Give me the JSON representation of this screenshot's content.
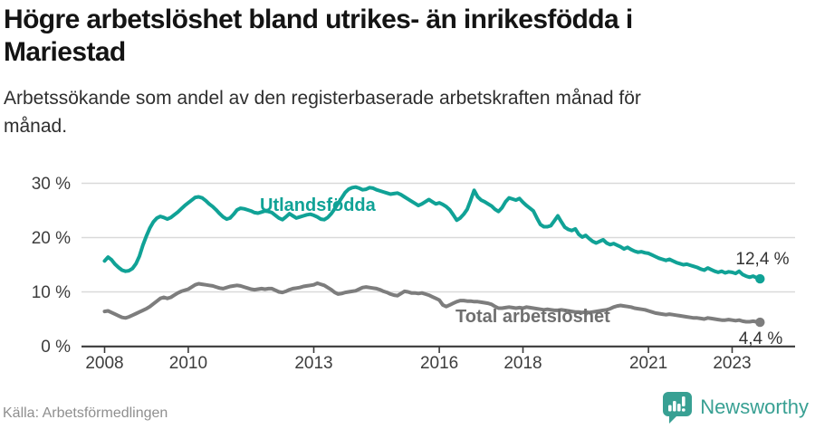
{
  "header": {
    "title": "Högre arbetslöshet bland utrikes- än inrikesfödda i\nMariestad",
    "subtitle": "Arbetssökande som andel av den registerbaserade arbetskraften månad för\nmånad."
  },
  "footer": {
    "source": "Källa: Arbetsförmedlingen",
    "brand": "Newsworthy"
  },
  "icons": {
    "brand_logo": "newsworthy-chart-bubble-icon"
  },
  "colors": {
    "accent_teal": "#10a296",
    "line_gray": "#7d7d7d",
    "label_gray": "#6f6f6f",
    "grid": "#d9d9d9",
    "axis": "#3a3a3a",
    "brand_teal": "#38a093"
  },
  "chart_data": {
    "type": "line",
    "title": "Högre arbetslöshet bland utrikes- än inrikesfödda i Mariestad",
    "subtitle": "Arbetssökande som andel av den registerbaserade arbetskraften månad för månad.",
    "frequency": "monthly",
    "period_start": "2008-01",
    "period_end": "2023-09",
    "grid": true,
    "legend_position": "inline-labels",
    "ylim": [
      0,
      32
    ],
    "y_axis": {
      "tick_values": [
        0,
        10,
        20,
        30
      ],
      "tick_labels": [
        "0 %",
        "10 %",
        "20 %",
        "30 %"
      ]
    },
    "x_axis": {
      "tick_years": [
        2008,
        2010,
        2013,
        2016,
        2018,
        2021,
        2023
      ],
      "tick_labels": [
        "2008",
        "2010",
        "2013",
        "2016",
        "2018",
        "2021",
        "2023"
      ]
    },
    "series": [
      {
        "name": "Utlandsfödda",
        "color": "#10a296",
        "end_label": "12,4 %",
        "end_value": 12.4,
        "values": [
          15.7,
          16.4,
          15.9,
          15.1,
          14.5,
          14.0,
          13.8,
          13.9,
          14.3,
          15.2,
          16.6,
          18.6,
          20.3,
          21.8,
          22.9,
          23.6,
          23.9,
          23.7,
          23.4,
          23.7,
          24.2,
          24.7,
          25.3,
          25.9,
          26.4,
          26.9,
          27.4,
          27.5,
          27.3,
          26.8,
          26.2,
          25.7,
          25.1,
          24.4,
          23.8,
          23.4,
          23.6,
          24.3,
          25.1,
          25.4,
          25.3,
          25.1,
          24.9,
          24.6,
          24.5,
          24.7,
          24.9,
          24.8,
          24.6,
          24.1,
          23.6,
          23.3,
          23.8,
          24.4,
          24.0,
          23.6,
          23.8,
          24.0,
          24.2,
          24.3,
          24.1,
          23.8,
          23.4,
          23.3,
          23.7,
          24.4,
          25.3,
          26.3,
          27.3,
          28.3,
          28.9,
          29.2,
          29.3,
          29.1,
          28.8,
          28.9,
          29.2,
          29.1,
          28.8,
          28.6,
          28.4,
          28.2,
          28.0,
          28.1,
          28.2,
          27.9,
          27.5,
          27.1,
          26.7,
          26.3,
          25.9,
          26.2,
          26.6,
          27.0,
          26.6,
          26.2,
          26.4,
          26.1,
          25.7,
          25.1,
          24.2,
          23.2,
          23.6,
          24.3,
          25.2,
          26.9,
          28.7,
          27.5,
          26.9,
          26.6,
          26.2,
          25.8,
          25.2,
          24.8,
          25.5,
          26.6,
          27.3,
          27.1,
          26.9,
          27.2,
          26.5,
          25.9,
          25.4,
          24.9,
          23.6,
          22.4,
          22.0,
          22.0,
          22.2,
          23.1,
          24.0,
          22.9,
          21.9,
          21.5,
          21.3,
          21.6,
          20.6,
          20.1,
          20.4,
          19.8,
          19.3,
          19.0,
          19.3,
          19.6,
          19.0,
          18.7,
          18.9,
          18.6,
          18.3,
          17.9,
          18.2,
          17.8,
          17.5,
          17.3,
          17.4,
          17.2,
          17.1,
          16.8,
          16.5,
          16.2,
          16.0,
          15.8,
          16.0,
          15.7,
          15.4,
          15.2,
          15.0,
          15.1,
          14.9,
          14.7,
          14.5,
          14.2,
          14.0,
          14.4,
          14.1,
          13.8,
          13.6,
          13.8,
          13.5,
          13.7,
          13.6,
          13.4,
          13.8,
          13.2,
          12.9,
          12.7,
          12.9,
          12.6,
          12.4
        ]
      },
      {
        "name": "Total arbetslöshet",
        "color": "#7d7d7d",
        "end_label": "4,4 %",
        "end_value": 4.4,
        "values": [
          6.4,
          6.5,
          6.2,
          5.9,
          5.6,
          5.3,
          5.2,
          5.4,
          5.7,
          6.0,
          6.3,
          6.6,
          6.9,
          7.3,
          7.8,
          8.3,
          8.8,
          9.0,
          8.8,
          9.0,
          9.4,
          9.8,
          10.1,
          10.3,
          10.5,
          10.9,
          11.3,
          11.5,
          11.4,
          11.3,
          11.2,
          11.1,
          10.9,
          10.7,
          10.6,
          10.8,
          11.0,
          11.1,
          11.2,
          11.1,
          10.9,
          10.7,
          10.5,
          10.4,
          10.5,
          10.6,
          10.5,
          10.6,
          10.6,
          10.3,
          10.0,
          9.9,
          10.1,
          10.4,
          10.6,
          10.7,
          10.8,
          11.0,
          11.1,
          11.2,
          11.3,
          11.6,
          11.4,
          11.2,
          10.8,
          10.4,
          9.9,
          9.6,
          9.7,
          9.9,
          10.0,
          10.1,
          10.2,
          10.5,
          10.8,
          10.9,
          10.8,
          10.7,
          10.6,
          10.4,
          10.1,
          9.9,
          9.6,
          9.4,
          9.3,
          9.7,
          10.1,
          10.0,
          9.8,
          9.8,
          9.7,
          9.8,
          9.6,
          9.4,
          9.1,
          8.8,
          8.5,
          7.6,
          7.3,
          7.6,
          7.9,
          8.2,
          8.4,
          8.4,
          8.3,
          8.3,
          8.2,
          8.2,
          8.1,
          8.0,
          7.9,
          7.7,
          7.3,
          7.0,
          7.0,
          7.1,
          7.2,
          7.1,
          7.0,
          7.1,
          7.0,
          7.2,
          7.1,
          7.0,
          6.9,
          6.8,
          6.7,
          6.8,
          6.7,
          6.6,
          6.6,
          6.7,
          6.6,
          6.5,
          6.4,
          6.3,
          6.3,
          6.2,
          6.3,
          6.2,
          6.3,
          6.4,
          6.5,
          6.6,
          6.7,
          6.9,
          7.2,
          7.4,
          7.5,
          7.4,
          7.3,
          7.2,
          7.0,
          6.9,
          6.8,
          6.7,
          6.5,
          6.3,
          6.1,
          6.0,
          5.9,
          5.8,
          5.9,
          5.8,
          5.7,
          5.6,
          5.5,
          5.4,
          5.3,
          5.2,
          5.2,
          5.1,
          5.0,
          5.2,
          5.1,
          5.0,
          4.9,
          4.8,
          4.8,
          4.9,
          4.8,
          4.7,
          4.8,
          4.6,
          4.5,
          4.5,
          4.6,
          4.5,
          4.4
        ]
      }
    ]
  }
}
